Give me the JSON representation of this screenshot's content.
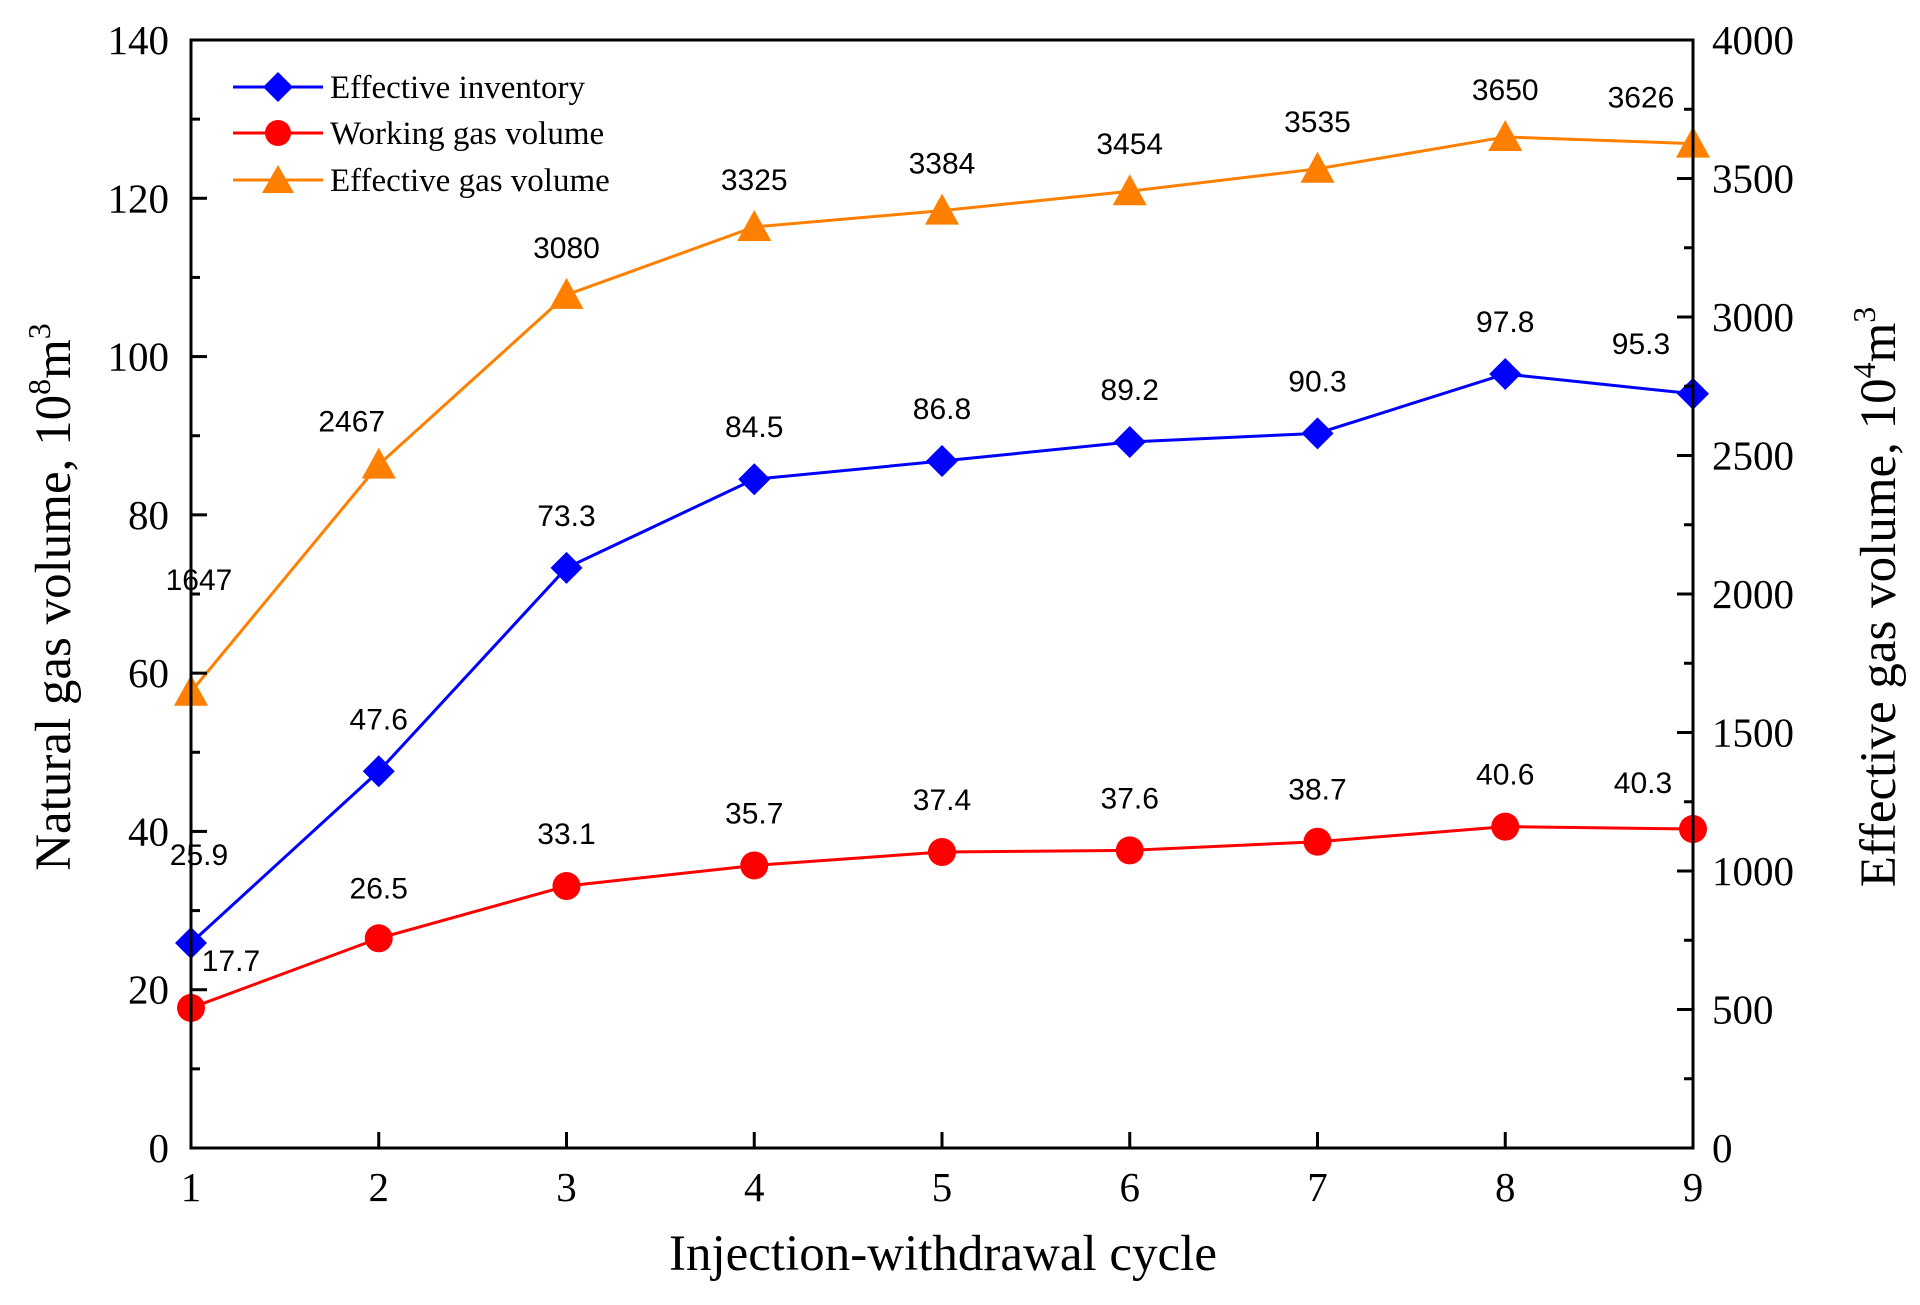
{
  "chart_data": {
    "type": "line",
    "x": [
      1,
      2,
      3,
      4,
      5,
      6,
      7,
      8,
      9
    ],
    "xlabel": "Injection-withdrawal cycle",
    "xlim": [
      1,
      9
    ],
    "ylabel_left": {
      "text": "Natural gas volume, 10",
      "sup": "8",
      "unit": "m",
      "unit_sup": "3"
    },
    "ylim_left": [
      0,
      140
    ],
    "yticks_left": [
      "0",
      "20",
      "40",
      "60",
      "80",
      "100",
      "120",
      "140"
    ],
    "ylabel_right": {
      "text": "Effective gas volume, 10",
      "sup": "4",
      "unit": "m",
      "unit_sup": "3"
    },
    "ylim_right": [
      0,
      4000
    ],
    "yticks_right": [
      "0",
      "500",
      "1000",
      "1500",
      "2000",
      "2500",
      "3000",
      "3500",
      "4000"
    ],
    "xticks": [
      "1",
      "2",
      "3",
      "4",
      "5",
      "6",
      "7",
      "8",
      "9"
    ],
    "legend_position": "top-left",
    "series": [
      {
        "name": "Effective inventory",
        "axis": "left",
        "marker": "diamond",
        "color": "#0000ff",
        "values": [
          25.9,
          47.6,
          73.3,
          84.5,
          86.8,
          89.2,
          90.3,
          97.8,
          95.3
        ],
        "labels": [
          "25.9",
          "47.6",
          "73.3",
          "84.5",
          "86.8",
          "89.2",
          "90.3",
          "97.8",
          "95.3"
        ]
      },
      {
        "name": "Working gas volume",
        "axis": "left",
        "marker": "circle",
        "color": "#ff0000",
        "values": [
          17.7,
          26.5,
          33.1,
          35.7,
          37.4,
          37.6,
          38.7,
          40.6,
          40.3
        ],
        "labels": [
          "17.7",
          "26.5",
          "33.1",
          "35.7",
          "37.4",
          "37.6",
          "38.7",
          "40.6",
          "40.3"
        ]
      },
      {
        "name": "Effective gas volume",
        "axis": "right",
        "marker": "triangle",
        "color": "#ff8000",
        "values": [
          1647,
          2467,
          3080,
          3325,
          3384,
          3454,
          3535,
          3650,
          3626
        ],
        "labels": [
          "1647",
          "2467",
          "3080",
          "3325",
          "3384",
          "3454",
          "3535",
          "3650",
          "3626"
        ]
      }
    ]
  }
}
